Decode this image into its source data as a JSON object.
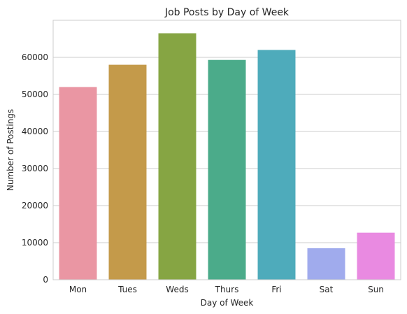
{
  "chart_data": {
    "type": "bar",
    "title": "Job Posts by Day of Week",
    "xlabel": "Day of Week",
    "ylabel": "Number of Postings",
    "categories": [
      "Mon",
      "Tues",
      "Weds",
      "Thurs",
      "Fri",
      "Sat",
      "Sun"
    ],
    "values": [
      52000,
      58000,
      66500,
      59300,
      62000,
      8500,
      12700
    ],
    "colors": [
      "#ea96a3",
      "#c49a4a",
      "#86a543",
      "#4bab8a",
      "#4eabbb",
      "#a0abed",
      "#e98ae1"
    ],
    "ylim": [
      0,
      70000
    ],
    "yticks": [
      0,
      10000,
      20000,
      30000,
      40000,
      50000,
      60000
    ],
    "ytick_labels": [
      "0",
      "10000",
      "20000",
      "30000",
      "40000",
      "50000",
      "60000"
    ],
    "grid": "horizontal",
    "style": "seaborn-whitegrid"
  }
}
